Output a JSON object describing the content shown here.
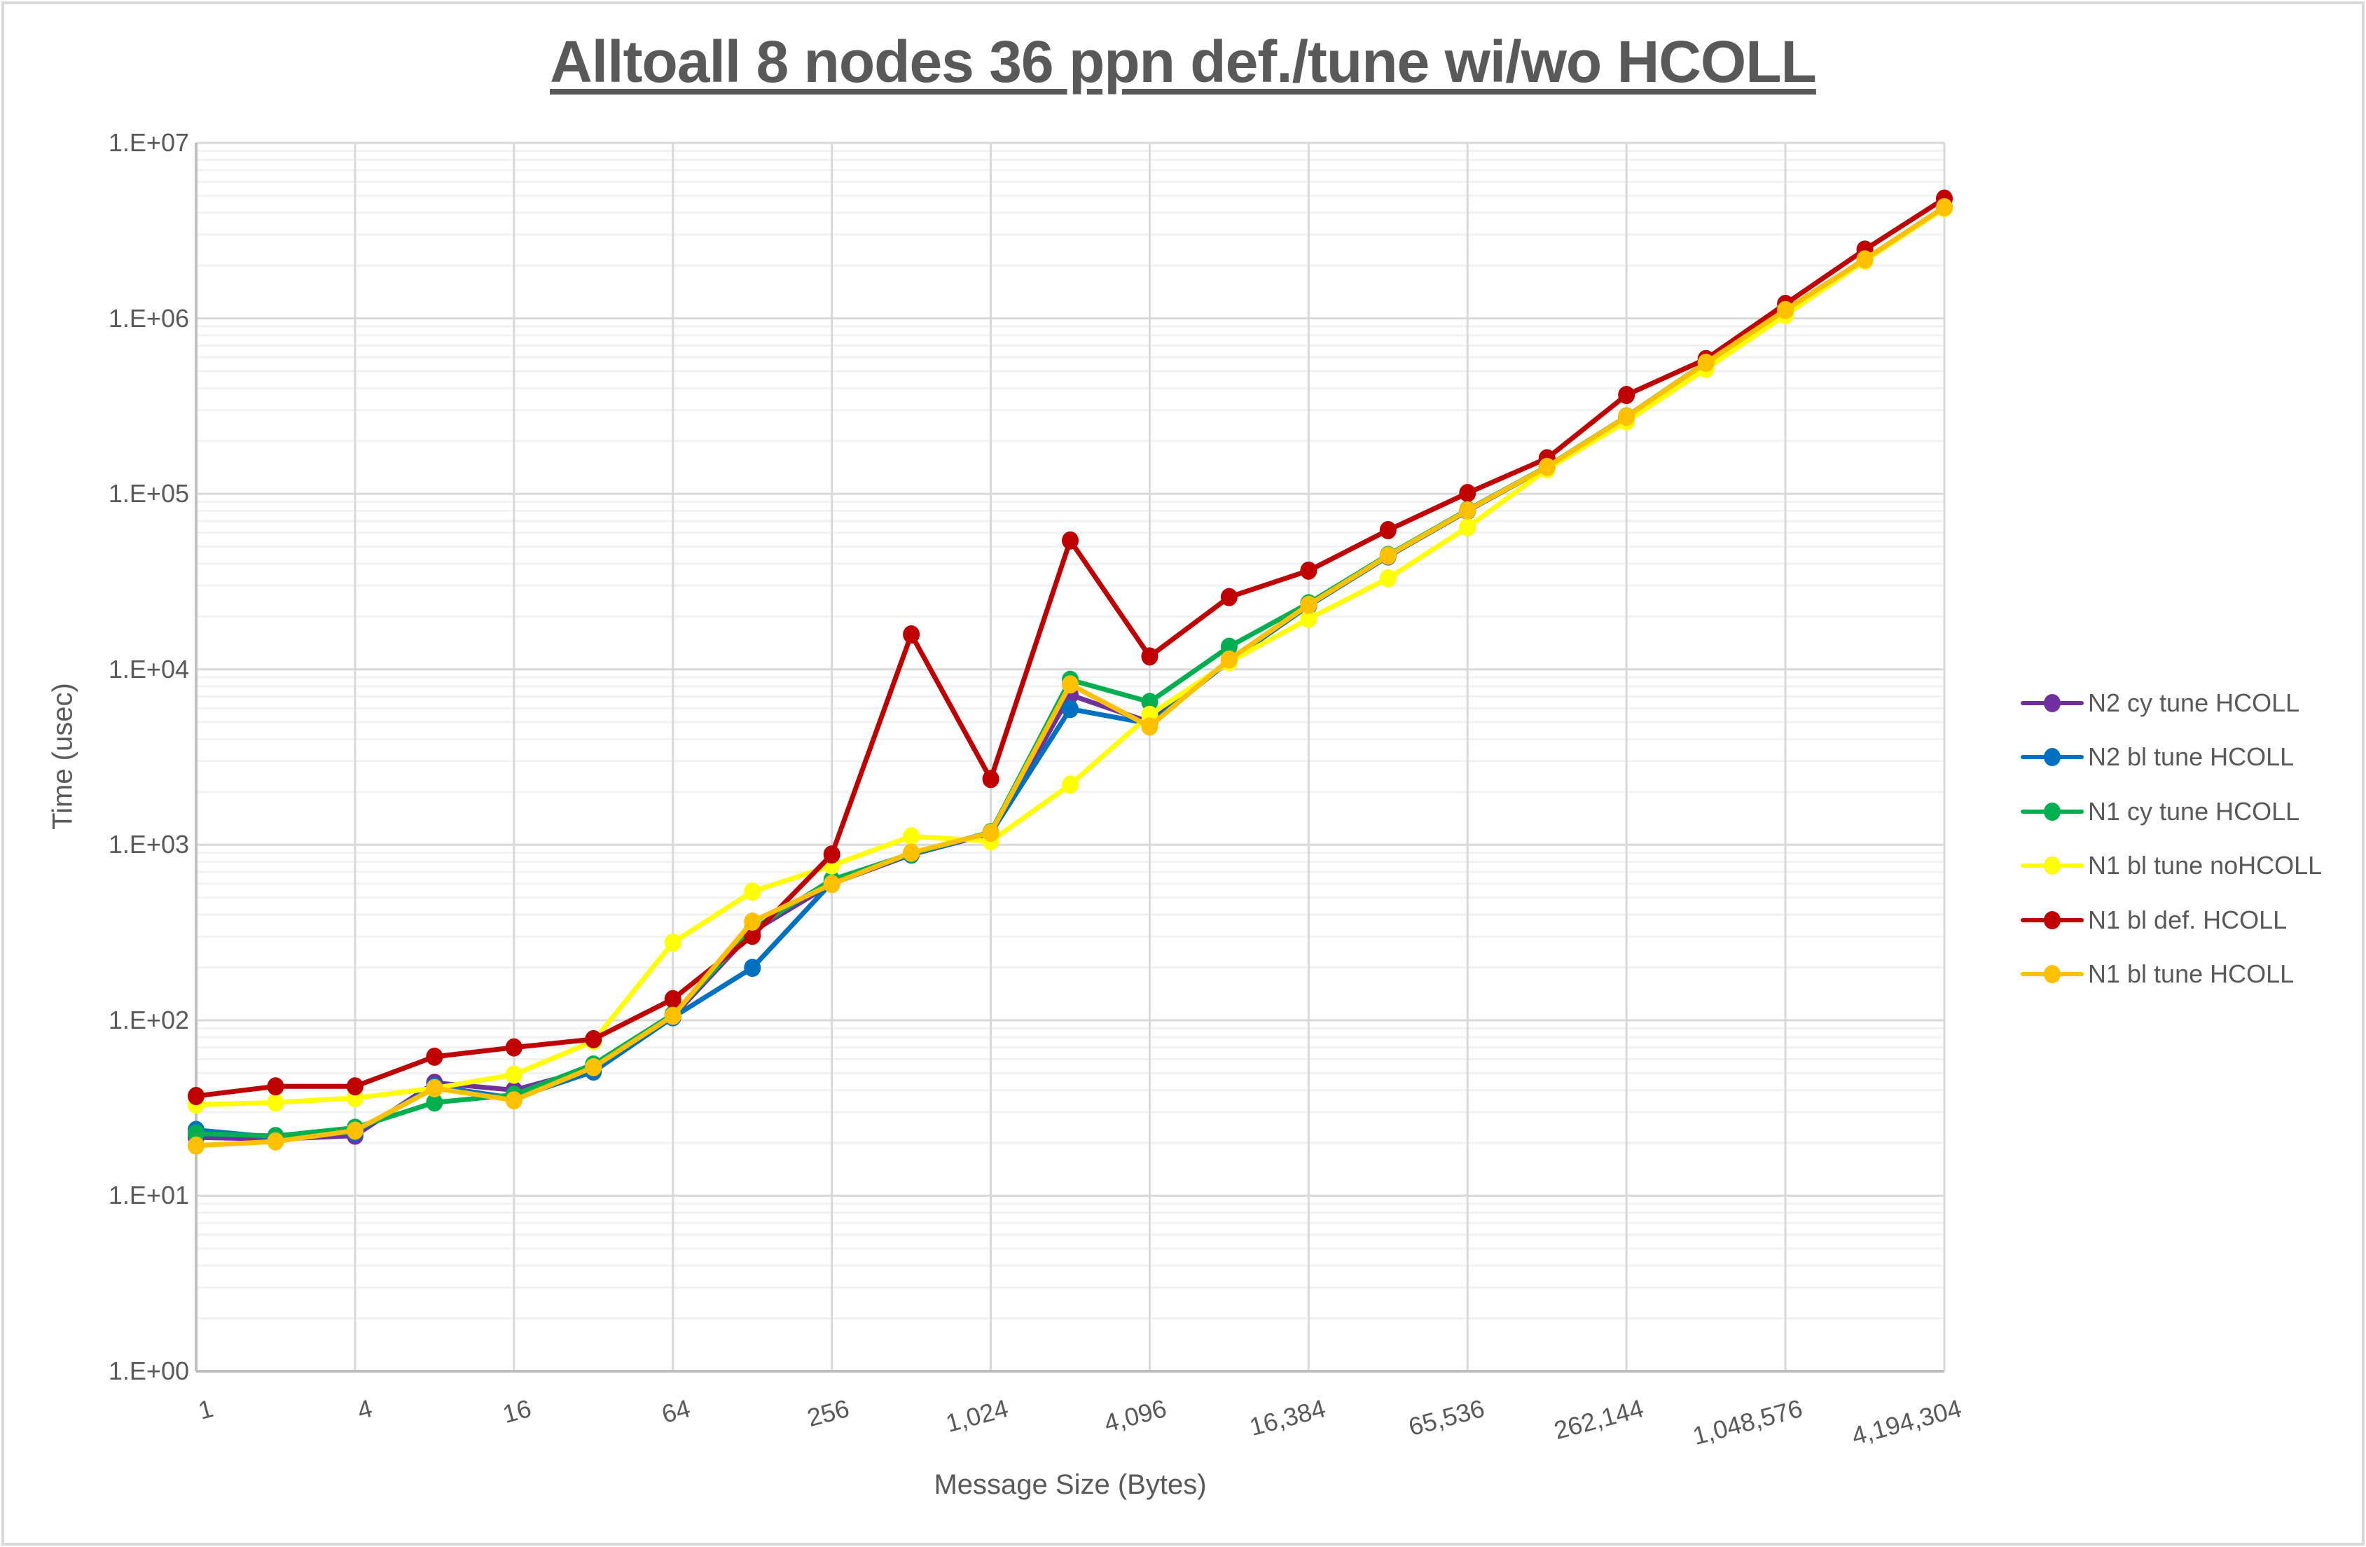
{
  "title": "Alltoall 8 nodes 36 ppn def./tune wi/wo HCOLL",
  "axes": {
    "x_title": "Message Size (Bytes)",
    "y_title": "Time (usec)",
    "y_ticks": [
      "1.E+00",
      "1.E+01",
      "1.E+02",
      "1.E+03",
      "1.E+04",
      "1.E+05",
      "1.E+06",
      "1.E+07"
    ],
    "x_ticks": [
      "1",
      "4",
      "16",
      "64",
      "256",
      "1,024",
      "4,096",
      "16,384",
      "65,536",
      "262,144",
      "1,048,576",
      "4,194,304"
    ]
  },
  "legend": [
    {
      "label": "N2 cy tune HCOLL",
      "color": "#7030a0"
    },
    {
      "label": "N2 bl tune HCOLL",
      "color": "#0070c0"
    },
    {
      "label": "N1 cy tune HCOLL",
      "color": "#00b050"
    },
    {
      "label": "N1 bl tune noHCOLL",
      "color": "#ffff00"
    },
    {
      "label": "N1 bl def. HCOLL",
      "color": "#c00000"
    },
    {
      "label": "N1 bl tune HCOLL",
      "color": "#ffc000"
    }
  ],
  "chart_data": {
    "type": "line",
    "title": "Alltoall 8 nodes 36 ppn def./tune wi/wo HCOLL",
    "xlabel": "Message Size (Bytes)",
    "ylabel": "Time (usec)",
    "x_scale": "log2",
    "y_scale": "log10",
    "ylim": [
      1,
      10000000
    ],
    "xlim": [
      1,
      4194304
    ],
    "grid": {
      "major": true,
      "minor_y": true
    },
    "legend_position": "right",
    "x": [
      1,
      2,
      4,
      8,
      16,
      32,
      64,
      128,
      256,
      512,
      1024,
      2048,
      4096,
      8192,
      16384,
      32768,
      65536,
      131072,
      262144,
      524288,
      1048576,
      2097152,
      4194304
    ],
    "series": [
      {
        "name": "N2 cy tune HCOLL",
        "color": "#7030a0",
        "values": [
          21.5,
          21,
          22,
          44,
          40,
          53,
          105,
          320,
          600,
          880,
          1160,
          7140,
          5000,
          11200,
          23100,
          44000,
          80000,
          142000,
          274000,
          556000,
          1112000,
          2165000,
          4290000
        ]
      },
      {
        "name": "N2 bl tune HCOLL",
        "color": "#0070c0",
        "values": [
          23.7,
          21.5,
          23,
          42,
          36,
          51,
          104,
          199,
          610,
          885,
          1165,
          5940,
          4900,
          11100,
          23000,
          44000,
          80000,
          142000,
          274000,
          556000,
          1112000,
          2165000,
          4290000
        ]
      },
      {
        "name": "N1 cy tune HCOLL",
        "color": "#00b050",
        "values": [
          22.6,
          21.9,
          24.4,
          34,
          37.6,
          56,
          108,
          330,
          632,
          890,
          1180,
          8710,
          6520,
          13450,
          23800,
          44800,
          81000,
          143000,
          276000,
          560000,
          1118000,
          2170000,
          4300000
        ]
      },
      {
        "name": "N1 bl tune noHCOLL",
        "color": "#ffff00",
        "values": [
          33,
          34,
          36,
          41,
          49,
          76,
          277,
          541,
          762,
          1117,
          1048,
          2200,
          5500,
          11000,
          19400,
          33000,
          64500,
          138000,
          259000,
          515000,
          1044000,
          2130000,
          4250000
        ]
      },
      {
        "name": "N1 bl def. HCOLL",
        "color": "#c00000",
        "values": [
          37,
          42,
          42,
          62,
          70,
          78,
          132,
          303,
          881,
          15800,
          2370,
          54200,
          11840,
          25800,
          36500,
          62100,
          101000,
          159400,
          365900,
          586000,
          1208000,
          2466000,
          4810000
        ]
      },
      {
        "name": "N1 bl tune HCOLL",
        "color": "#ffc000",
        "values": [
          19.3,
          20.4,
          23.5,
          41,
          35,
          54,
          106,
          365,
          597,
          902,
          1170,
          8200,
          4720,
          11370,
          23300,
          44400,
          80500,
          142300,
          275000,
          558000,
          1115000,
          2168000,
          4296000
        ]
      }
    ]
  }
}
